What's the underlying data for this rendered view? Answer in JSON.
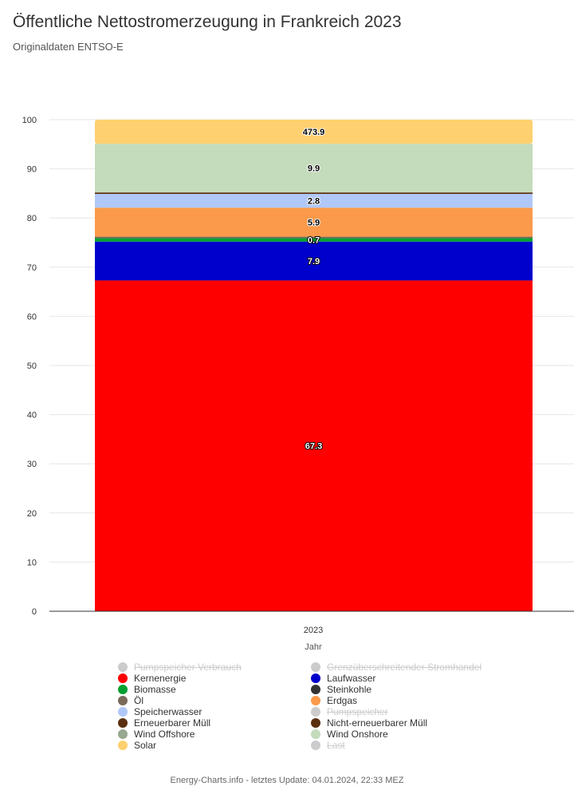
{
  "header": {
    "title": "Öffentliche Nettostromerzeugung in Frankreich 2023",
    "subtitle": "Originaldaten ENTSO-E"
  },
  "footer": {
    "text": "Energy-Charts.info - letztes Update: 04.01.2024, 22:33 MEZ"
  },
  "chart_data": {
    "type": "bar",
    "stacked": true,
    "categories": [
      "2023"
    ],
    "xlabel": "Jahr",
    "ylabel": "",
    "ylim": [
      0,
      100
    ],
    "yticks": [
      0,
      10,
      20,
      30,
      40,
      50,
      60,
      70,
      80,
      90,
      100
    ],
    "grid": true,
    "legend_position": "bottom",
    "series": [
      {
        "name": "Kernenergie",
        "values": [
          67.3
        ],
        "color": "#ff0000",
        "label": "67.3"
      },
      {
        "name": "Laufwasser",
        "values": [
          7.9
        ],
        "color": "#0000cc",
        "label": "7.9"
      },
      {
        "name": "Biomasse",
        "values": [
          0.7
        ],
        "color": "#00a030",
        "label": "0.7"
      },
      {
        "name": "Öl",
        "values": [
          0.3
        ],
        "color": "#7a6a5a",
        "label": ""
      },
      {
        "name": "Erdgas",
        "values": [
          5.9
        ],
        "color": "#fa9a4a",
        "label": "5.9"
      },
      {
        "name": "Speicherwasser",
        "values": [
          2.8
        ],
        "color": "#b0c8f8",
        "label": "2.8"
      },
      {
        "name": "Nicht-erneuerbarer Müll",
        "values": [
          0.3
        ],
        "color": "#5a3010",
        "label": ""
      },
      {
        "name": "Wind Onshore",
        "values": [
          9.9
        ],
        "color": "#c4dbbc",
        "label": "9.9"
      },
      {
        "name": "Solar",
        "values": [
          4.9
        ],
        "color": "#ffd070",
        "label": "473.9"
      }
    ]
  },
  "legend": {
    "items": [
      {
        "label": "Pumpspeicher Verbrauch",
        "color": "#cccccc",
        "hidden": true
      },
      {
        "label": "Grenzüberschreitender Stromhandel",
        "color": "#cccccc",
        "hidden": true
      },
      {
        "label": "Kernenergie",
        "color": "#ff0000",
        "hidden": false
      },
      {
        "label": "Laufwasser",
        "color": "#0000cc",
        "hidden": false
      },
      {
        "label": "Biomasse",
        "color": "#00a030",
        "hidden": false
      },
      {
        "label": "Steinkohle",
        "color": "#333333",
        "hidden": false
      },
      {
        "label": "Öl",
        "color": "#7a6a5a",
        "hidden": false
      },
      {
        "label": "Erdgas",
        "color": "#fa9a4a",
        "hidden": false
      },
      {
        "label": "Speicherwasser",
        "color": "#b0c8f8",
        "hidden": false
      },
      {
        "label": "Pumpspeicher",
        "color": "#cccccc",
        "hidden": true
      },
      {
        "label": "Erneuerbarer Müll",
        "color": "#5a3010",
        "hidden": false
      },
      {
        "label": "Nicht-erneuerbarer Müll",
        "color": "#5a3010",
        "hidden": false
      },
      {
        "label": "Wind Offshore",
        "color": "#98a890",
        "hidden": false
      },
      {
        "label": "Wind Onshore",
        "color": "#c4dbbc",
        "hidden": false
      },
      {
        "label": "Solar",
        "color": "#ffd070",
        "hidden": false
      },
      {
        "label": "Last",
        "color": "#cccccc",
        "hidden": true
      }
    ]
  }
}
